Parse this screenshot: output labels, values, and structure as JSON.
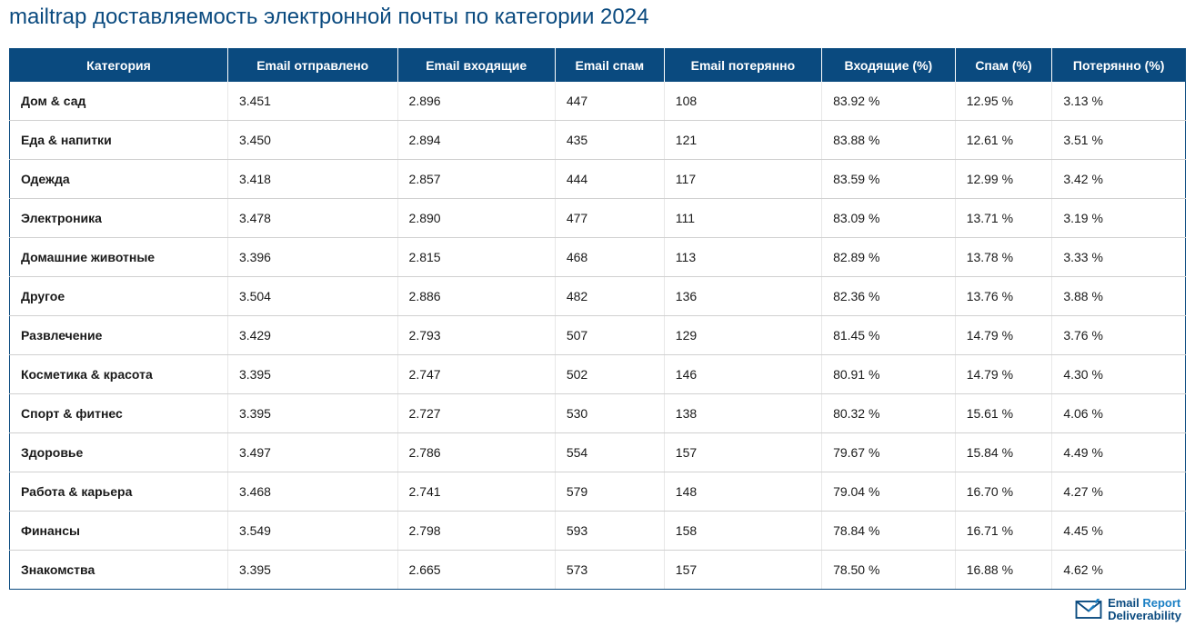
{
  "title": "mailtrap доставляемость электронной почты по категории 2024",
  "table": {
    "type": "table",
    "header_bg": "#0a4a7f",
    "header_fg": "#ffffff",
    "border_color": "#0a4a7f",
    "row_border": "#d0d0d0",
    "columns": [
      "Категория",
      "Email отправлено",
      "Email входящие",
      "Email спам",
      "Email потерянно",
      "Входящие (%)",
      "Спам (%)",
      "Потерянно (%)"
    ],
    "rows": [
      [
        "Дом & сад",
        "3.451",
        "2.896",
        "447",
        "108",
        "83.92 %",
        "12.95 %",
        "3.13 %"
      ],
      [
        "Еда & напитки",
        "3.450",
        "2.894",
        "435",
        "121",
        "83.88 %",
        "12.61 %",
        "3.51 %"
      ],
      [
        "Одежда",
        "3.418",
        "2.857",
        "444",
        "117",
        "83.59 %",
        "12.99 %",
        "3.42 %"
      ],
      [
        "Электроника",
        "3.478",
        "2.890",
        "477",
        "111",
        "83.09 %",
        "13.71 %",
        "3.19 %"
      ],
      [
        "Домашние животные",
        "3.396",
        "2.815",
        "468",
        "113",
        "82.89 %",
        "13.78 %",
        "3.33 %"
      ],
      [
        "Другое",
        "3.504",
        "2.886",
        "482",
        "136",
        "82.36 %",
        "13.76 %",
        "3.88 %"
      ],
      [
        "Развлечение",
        "3.429",
        "2.793",
        "507",
        "129",
        "81.45 %",
        "14.79 %",
        "3.76 %"
      ],
      [
        "Косметика & красота",
        "3.395",
        "2.747",
        "502",
        "146",
        "80.91 %",
        "14.79 %",
        "4.30 %"
      ],
      [
        "Спорт & фитнес",
        "3.395",
        "2.727",
        "530",
        "138",
        "80.32 %",
        "15.61 %",
        "4.06 %"
      ],
      [
        "Здоровье",
        "3.497",
        "2.786",
        "554",
        "157",
        "79.67 %",
        "15.84 %",
        "4.49 %"
      ],
      [
        "Работа & карьера",
        "3.468",
        "2.741",
        "579",
        "148",
        "79.04 %",
        "16.70 %",
        "4.27 %"
      ],
      [
        "Финансы",
        "3.549",
        "2.798",
        "593",
        "158",
        "78.84 %",
        "16.71 %",
        "4.45 %"
      ],
      [
        "Знакомства",
        "3.395",
        "2.665",
        "573",
        "157",
        "78.50 %",
        "16.88 %",
        "4.62 %"
      ]
    ],
    "category_font_weight": "700",
    "body_font_size": 14,
    "header_font_size": 14
  },
  "logo": {
    "line1a": "Email",
    "line1b": " Report",
    "line2": "Deliverability",
    "icon_color": "#0a4a7f",
    "accent_color": "#1a7fc4"
  }
}
